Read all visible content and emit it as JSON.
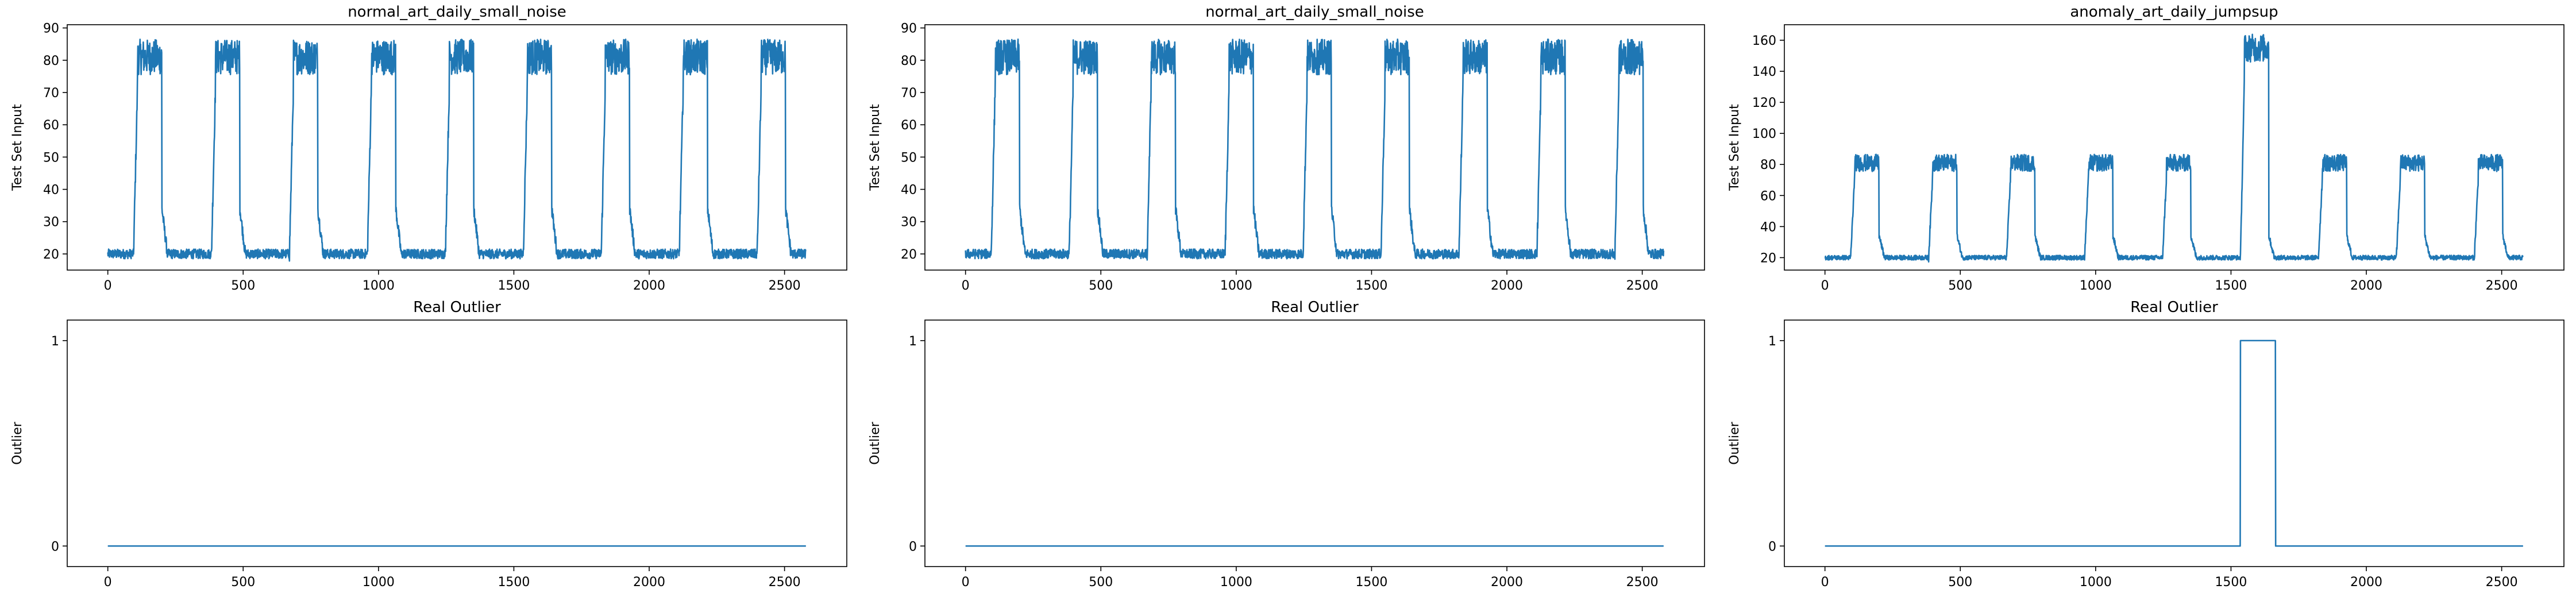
{
  "chart_data": [
    {
      "type": "line",
      "title": "normal_art_daily_small_noise",
      "xlabel": "",
      "ylabel": "Test Set Input",
      "xlim": [
        -150,
        2730
      ],
      "ylim": [
        15,
        91
      ],
      "xticks": [
        0,
        500,
        1000,
        1500,
        2000,
        2500
      ],
      "yticks": [
        20,
        30,
        40,
        50,
        60,
        70,
        80,
        90
      ],
      "color": "#1f77b4",
      "pattern": {
        "n_points": 2580,
        "period": 288,
        "high_start": 95,
        "high_end": 200,
        "low_level": 20,
        "high_level": 81
      },
      "points": [
        [
          0,
          20
        ],
        [
          95,
          20
        ],
        [
          110,
          70
        ],
        [
          125,
          80
        ],
        [
          200,
          81
        ],
        [
          205,
          35
        ],
        [
          215,
          24
        ],
        [
          240,
          20
        ],
        [
          383,
          20
        ],
        [
          398,
          70
        ],
        [
          413,
          80
        ],
        [
          488,
          81
        ],
        [
          493,
          35
        ],
        [
          503,
          24
        ],
        [
          528,
          20
        ],
        [
          671,
          20
        ],
        [
          686,
          70
        ],
        [
          701,
          80
        ],
        [
          776,
          81
        ],
        [
          781,
          35
        ],
        [
          791,
          24
        ],
        [
          816,
          20
        ],
        [
          959,
          20
        ],
        [
          974,
          70
        ],
        [
          989,
          80
        ],
        [
          1064,
          81
        ],
        [
          1069,
          35
        ],
        [
          1079,
          24
        ],
        [
          1104,
          20
        ],
        [
          1247,
          20
        ],
        [
          1262,
          70
        ],
        [
          1277,
          80
        ],
        [
          1352,
          81
        ],
        [
          1357,
          35
        ],
        [
          1367,
          24
        ],
        [
          1392,
          20
        ],
        [
          1535,
          20
        ],
        [
          1550,
          70
        ],
        [
          1565,
          80
        ],
        [
          1640,
          81
        ],
        [
          1645,
          35
        ],
        [
          1655,
          24
        ],
        [
          1680,
          20
        ],
        [
          1823,
          20
        ],
        [
          1838,
          70
        ],
        [
          1853,
          80
        ],
        [
          1928,
          81
        ],
        [
          1933,
          35
        ],
        [
          1943,
          24
        ],
        [
          1968,
          20
        ],
        [
          2111,
          20
        ],
        [
          2126,
          70
        ],
        [
          2141,
          80
        ],
        [
          2216,
          81
        ],
        [
          2221,
          35
        ],
        [
          2231,
          24
        ],
        [
          2256,
          20
        ],
        [
          2399,
          20
        ],
        [
          2414,
          70
        ],
        [
          2429,
          80
        ],
        [
          2504,
          81
        ],
        [
          2509,
          35
        ],
        [
          2519,
          24
        ],
        [
          2579,
          20
        ]
      ]
    },
    {
      "type": "line",
      "title": "normal_art_daily_small_noise",
      "xlabel": "",
      "ylabel": "Test Set Input",
      "xlim": [
        -150,
        2730
      ],
      "ylim": [
        15,
        91
      ],
      "xticks": [
        0,
        500,
        1000,
        1500,
        2000,
        2500
      ],
      "yticks": [
        20,
        30,
        40,
        50,
        60,
        70,
        80,
        90
      ],
      "color": "#1f77b4",
      "pattern": {
        "n_points": 2580,
        "period": 288,
        "high_start": 95,
        "high_end": 200,
        "low_level": 20,
        "high_level": 81
      },
      "points": [
        [
          0,
          20
        ],
        [
          95,
          20
        ],
        [
          110,
          70
        ],
        [
          125,
          80
        ],
        [
          200,
          81
        ],
        [
          205,
          35
        ],
        [
          215,
          24
        ],
        [
          240,
          20
        ],
        [
          383,
          20
        ],
        [
          398,
          70
        ],
        [
          413,
          80
        ],
        [
          488,
          81
        ],
        [
          493,
          35
        ],
        [
          503,
          24
        ],
        [
          528,
          20
        ],
        [
          671,
          20
        ],
        [
          686,
          70
        ],
        [
          701,
          80
        ],
        [
          776,
          81
        ],
        [
          781,
          35
        ],
        [
          791,
          24
        ],
        [
          816,
          20
        ],
        [
          959,
          20
        ],
        [
          974,
          70
        ],
        [
          989,
          80
        ],
        [
          1064,
          81
        ],
        [
          1069,
          35
        ],
        [
          1079,
          24
        ],
        [
          1104,
          20
        ],
        [
          1247,
          20
        ],
        [
          1262,
          70
        ],
        [
          1277,
          80
        ],
        [
          1352,
          81
        ],
        [
          1357,
          35
        ],
        [
          1367,
          24
        ],
        [
          1392,
          20
        ],
        [
          1535,
          20
        ],
        [
          1550,
          70
        ],
        [
          1565,
          80
        ],
        [
          1640,
          81
        ],
        [
          1645,
          35
        ],
        [
          1655,
          24
        ],
        [
          1680,
          20
        ],
        [
          1823,
          20
        ],
        [
          1838,
          70
        ],
        [
          1853,
          80
        ],
        [
          1928,
          81
        ],
        [
          1933,
          35
        ],
        [
          1943,
          24
        ],
        [
          1968,
          20
        ],
        [
          2111,
          20
        ],
        [
          2126,
          70
        ],
        [
          2141,
          80
        ],
        [
          2216,
          81
        ],
        [
          2221,
          35
        ],
        [
          2231,
          24
        ],
        [
          2256,
          20
        ],
        [
          2399,
          20
        ],
        [
          2414,
          70
        ],
        [
          2429,
          80
        ],
        [
          2504,
          81
        ],
        [
          2509,
          35
        ],
        [
          2519,
          24
        ],
        [
          2579,
          20
        ]
      ]
    },
    {
      "type": "line",
      "title": "anomaly_art_daily_jumpsup",
      "xlabel": "",
      "ylabel": "Test Set Input",
      "xlim": [
        -150,
        2730
      ],
      "ylim": [
        12,
        170
      ],
      "xticks": [
        0,
        500,
        1000,
        1500,
        2000,
        2500
      ],
      "yticks": [
        20,
        40,
        60,
        80,
        100,
        120,
        140,
        160
      ],
      "color": "#1f77b4",
      "pattern": {
        "n_points": 2580,
        "period": 288,
        "high_start": 95,
        "high_end": 200,
        "low_level": 20,
        "high_level": 81,
        "anomaly_period": 5,
        "anomaly_level": 155
      },
      "points": [
        [
          0,
          20
        ],
        [
          95,
          20
        ],
        [
          110,
          70
        ],
        [
          125,
          80
        ],
        [
          200,
          81
        ],
        [
          205,
          35
        ],
        [
          215,
          24
        ],
        [
          240,
          20
        ],
        [
          383,
          20
        ],
        [
          398,
          70
        ],
        [
          413,
          80
        ],
        [
          488,
          81
        ],
        [
          493,
          35
        ],
        [
          503,
          24
        ],
        [
          528,
          20
        ],
        [
          671,
          20
        ],
        [
          686,
          70
        ],
        [
          701,
          80
        ],
        [
          776,
          81
        ],
        [
          781,
          35
        ],
        [
          791,
          24
        ],
        [
          816,
          20
        ],
        [
          959,
          20
        ],
        [
          974,
          70
        ],
        [
          989,
          80
        ],
        [
          1064,
          81
        ],
        [
          1069,
          35
        ],
        [
          1079,
          24
        ],
        [
          1104,
          20
        ],
        [
          1247,
          20
        ],
        [
          1262,
          70
        ],
        [
          1277,
          80
        ],
        [
          1352,
          81
        ],
        [
          1357,
          35
        ],
        [
          1367,
          24
        ],
        [
          1392,
          20
        ],
        [
          1535,
          20
        ],
        [
          1550,
          140
        ],
        [
          1565,
          155
        ],
        [
          1640,
          155
        ],
        [
          1645,
          35
        ],
        [
          1655,
          24
        ],
        [
          1680,
          20
        ],
        [
          1823,
          20
        ],
        [
          1838,
          70
        ],
        [
          1853,
          80
        ],
        [
          1928,
          81
        ],
        [
          1933,
          35
        ],
        [
          1943,
          24
        ],
        [
          1968,
          20
        ],
        [
          2111,
          20
        ],
        [
          2126,
          70
        ],
        [
          2141,
          80
        ],
        [
          2216,
          81
        ],
        [
          2221,
          35
        ],
        [
          2231,
          24
        ],
        [
          2256,
          20
        ],
        [
          2399,
          20
        ],
        [
          2414,
          70
        ],
        [
          2429,
          80
        ],
        [
          2504,
          81
        ],
        [
          2509,
          35
        ],
        [
          2519,
          24
        ],
        [
          2579,
          20
        ]
      ]
    },
    {
      "type": "line",
      "title": "Real Outlier",
      "xlabel": "",
      "ylabel": "Outlier",
      "xlim": [
        -150,
        2730
      ],
      "ylim": [
        -0.1,
        1.1
      ],
      "xticks": [
        0,
        500,
        1000,
        1500,
        2000,
        2500
      ],
      "yticks": [
        0,
        1
      ],
      "color": "#1f77b4",
      "points": [
        [
          0,
          0
        ],
        [
          2579,
          0
        ]
      ]
    },
    {
      "type": "line",
      "title": "Real Outlier",
      "xlabel": "",
      "ylabel": "Outlier",
      "xlim": [
        -150,
        2730
      ],
      "ylim": [
        -0.1,
        1.1
      ],
      "xticks": [
        0,
        500,
        1000,
        1500,
        2000,
        2500
      ],
      "yticks": [
        0,
        1
      ],
      "color": "#1f77b4",
      "points": [
        [
          0,
          0
        ],
        [
          2579,
          0
        ]
      ]
    },
    {
      "type": "line",
      "title": "Real Outlier",
      "xlabel": "",
      "ylabel": "Outlier",
      "xlim": [
        -150,
        2730
      ],
      "ylim": [
        -0.1,
        1.1
      ],
      "xticks": [
        0,
        500,
        1000,
        1500,
        2000,
        2500
      ],
      "yticks": [
        0,
        1
      ],
      "color": "#1f77b4",
      "points": [
        [
          0,
          0
        ],
        [
          1534,
          0
        ],
        [
          1535,
          1
        ],
        [
          1664,
          1
        ],
        [
          1665,
          0
        ],
        [
          2579,
          0
        ]
      ]
    }
  ]
}
